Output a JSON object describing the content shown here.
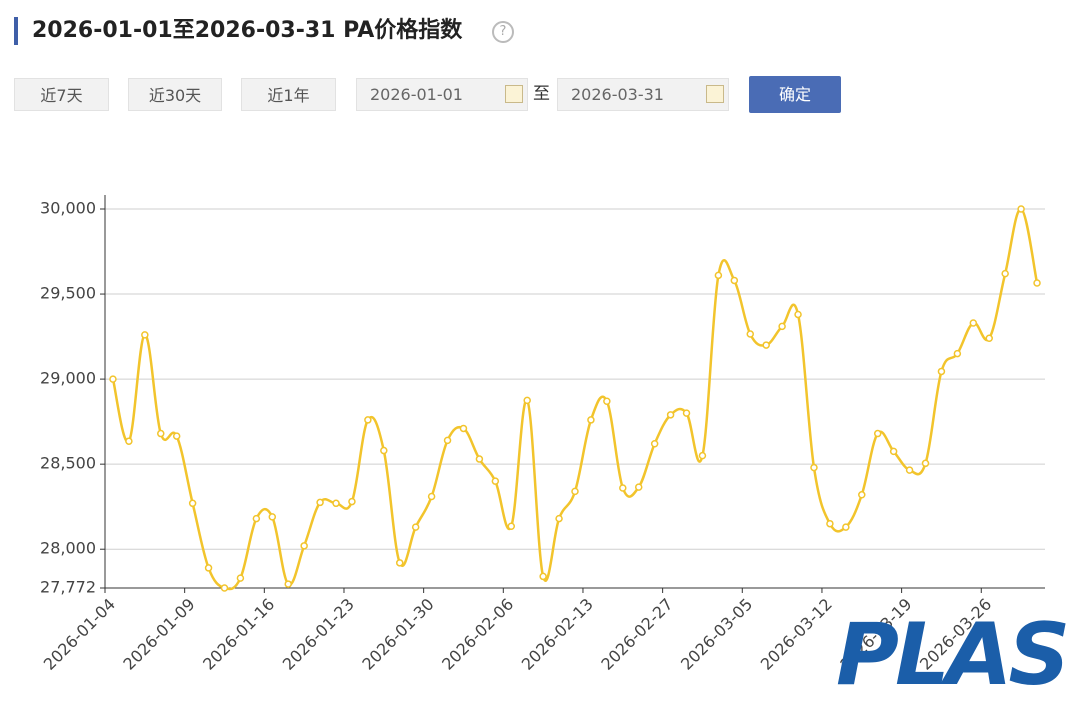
{
  "header": {
    "title": "2026-01-01至2026-03-31 PA价格指数"
  },
  "controls": {
    "ranges": [
      "近7天",
      "近30天",
      "近1年"
    ],
    "date_start": "2026-01-01",
    "separator": "至",
    "date_end": "2026-03-31",
    "confirm": "确定"
  },
  "watermark": "PLAS",
  "chart_data": {
    "type": "line",
    "categories": [
      "2026-01-04",
      null,
      null,
      null,
      null,
      "2026-01-09",
      null,
      null,
      null,
      null,
      "2026-01-16",
      null,
      null,
      null,
      null,
      "2026-01-23",
      null,
      null,
      null,
      null,
      "2026-01-30",
      null,
      null,
      null,
      null,
      "2026-02-06",
      null,
      null,
      null,
      null,
      "2026-02-13",
      null,
      null,
      null,
      null,
      "2026-02-27",
      null,
      null,
      null,
      null,
      "2026-03-05",
      null,
      null,
      null,
      null,
      "2026-03-12",
      null,
      null,
      null,
      null,
      "2026-03-19",
      null,
      null,
      null,
      null,
      "2026-03-26",
      null,
      null,
      null
    ],
    "series": [
      {
        "name": "PA价格指数",
        "color": "#f2c42c",
        "values": [
          29000,
          28635,
          29260,
          28680,
          28665,
          28270,
          27890,
          27772,
          27830,
          28180,
          28190,
          27795,
          28020,
          28275,
          28270,
          28280,
          28760,
          28580,
          27920,
          28130,
          28310,
          28640,
          28710,
          28530,
          28400,
          28135,
          28875,
          27840,
          28180,
          28340,
          28760,
          28870,
          28360,
          28365,
          28620,
          28790,
          28800,
          28550,
          29610,
          29580,
          29265,
          29200,
          29310,
          29380,
          28480,
          28150,
          28130,
          28320,
          28680,
          28575,
          28465,
          28505,
          29045,
          29150,
          29330,
          29240,
          29620,
          30000,
          29565
        ]
      }
    ],
    "ylim": [
      27772,
      30000
    ],
    "yticks": [
      {
        "value": 27772,
        "label": "27,772"
      },
      {
        "value": 28000,
        "label": "28,000"
      },
      {
        "value": 28500,
        "label": "28,500"
      },
      {
        "value": 29000,
        "label": "29,000"
      },
      {
        "value": 29500,
        "label": "29,500"
      },
      {
        "value": 30000,
        "label": "30,000"
      }
    ],
    "grid": true
  }
}
